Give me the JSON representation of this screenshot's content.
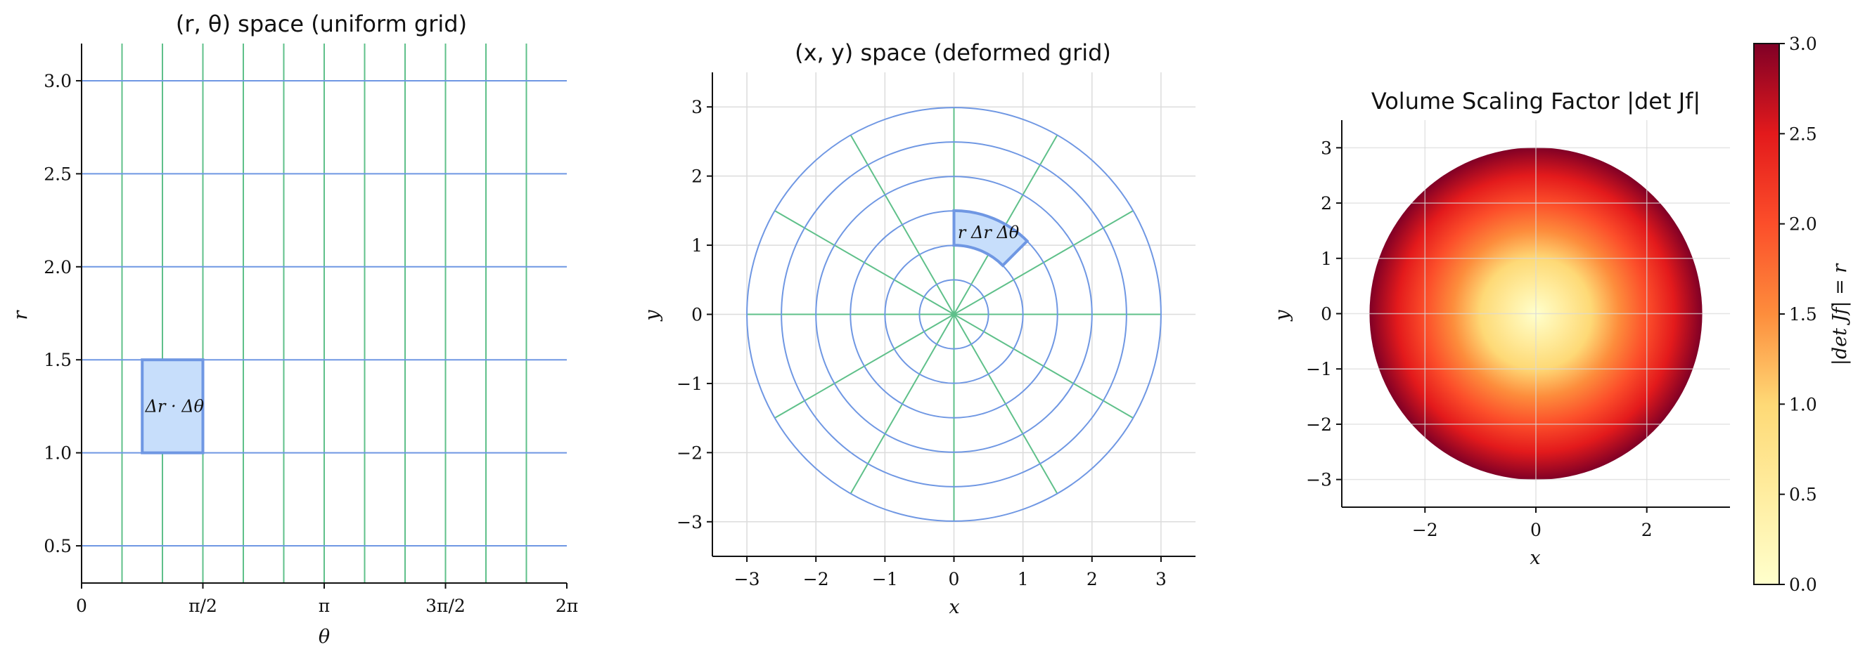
{
  "colors": {
    "r_lines": "#6f97e3",
    "theta_lines": "#5fc08a",
    "patch_fill": "#c7defb",
    "patch_edge": "#6f97e3",
    "grid": "#dcdcdc",
    "heat_low": "#ffffcc",
    "heat_mid": "#fd8d3c",
    "heat_high": "#800026"
  },
  "chart_data": [
    {
      "type": "line",
      "title": "(r, θ) space (uniform grid)",
      "xlabel": "θ",
      "ylabel": "r",
      "xlim": [
        0,
        6.2832
      ],
      "ylim": [
        0.3,
        3.2
      ],
      "xtick_values": [
        0,
        1.5708,
        3.1416,
        4.7124,
        6.2832
      ],
      "xtick_labels": [
        "0",
        "π/2",
        "π",
        "3π/2",
        "2π"
      ],
      "ytick_values": [
        0.5,
        1.0,
        1.5,
        2.0,
        2.5,
        3.0
      ],
      "ytick_labels": [
        "0.5",
        "1.0",
        "1.5",
        "2.0",
        "2.5",
        "3.0"
      ],
      "r_grid_lines": [
        0.5,
        1.0,
        1.5,
        2.0,
        2.5,
        3.0
      ],
      "theta_grid_lines": [
        0.5236,
        1.0472,
        1.5708,
        2.0944,
        2.618,
        3.1416,
        3.6652,
        4.1888,
        4.7124,
        5.236,
        5.7596
      ],
      "patch": {
        "theta": [
          0.7854,
          1.5708
        ],
        "r": [
          1.0,
          1.5
        ]
      },
      "annotation": "Δr · Δθ",
      "grid": false
    },
    {
      "type": "line",
      "title": "(x, y) space (deformed grid)",
      "xlabel": "x",
      "ylabel": "y",
      "xlim": [
        -3.5,
        3.5
      ],
      "ylim": [
        -3.5,
        3.5
      ],
      "xticks": [
        -3,
        -2,
        -1,
        0,
        1,
        2,
        3
      ],
      "xtick_labels": [
        "−3",
        "−2",
        "−1",
        "0",
        "1",
        "2",
        "3"
      ],
      "yticks": [
        -3,
        -2,
        -1,
        0,
        1,
        2,
        3
      ],
      "ytick_labels": [
        "−3",
        "−2",
        "−1",
        "0",
        "1",
        "2",
        "3"
      ],
      "circle_radii": [
        0.5,
        1.0,
        1.5,
        2.0,
        2.5,
        3.0
      ],
      "spoke_angles_deg": [
        0,
        30,
        60,
        90,
        120,
        150,
        180,
        210,
        240,
        270,
        300,
        330
      ],
      "spoke_length": 3.0,
      "patch": {
        "r": [
          1.0,
          1.5
        ],
        "theta_deg": [
          45,
          90
        ]
      },
      "annotation": "r Δr Δθ",
      "grid": true
    },
    {
      "type": "heatmap",
      "title": "Volume Scaling Factor |det Jf|",
      "xlabel": "x",
      "ylabel": "y",
      "xlim": [
        -3.5,
        3.5
      ],
      "ylim": [
        -3.5,
        3.5
      ],
      "xticks": [
        -2,
        0,
        2
      ],
      "xtick_labels": [
        "−2",
        "0",
        "2"
      ],
      "yticks": [
        -3,
        -2,
        -1,
        0,
        1,
        2,
        3
      ],
      "ytick_labels": [
        "−3",
        "−2",
        "−1",
        "0",
        "1",
        "2",
        "3"
      ],
      "value_function": "|det Jf| = r for r ≤ 3",
      "disk_radius": 3.0,
      "colormap": "YlOrRd",
      "colorbar": {
        "label": "|det Jf| = r",
        "range": [
          0,
          3
        ],
        "ticks": [
          0.0,
          0.5,
          1.0,
          1.5,
          2.0,
          2.5,
          3.0
        ],
        "tick_labels": [
          "0.0",
          "0.5",
          "1.0",
          "1.5",
          "2.0",
          "2.5",
          "3.0"
        ]
      },
      "grid": true
    }
  ]
}
